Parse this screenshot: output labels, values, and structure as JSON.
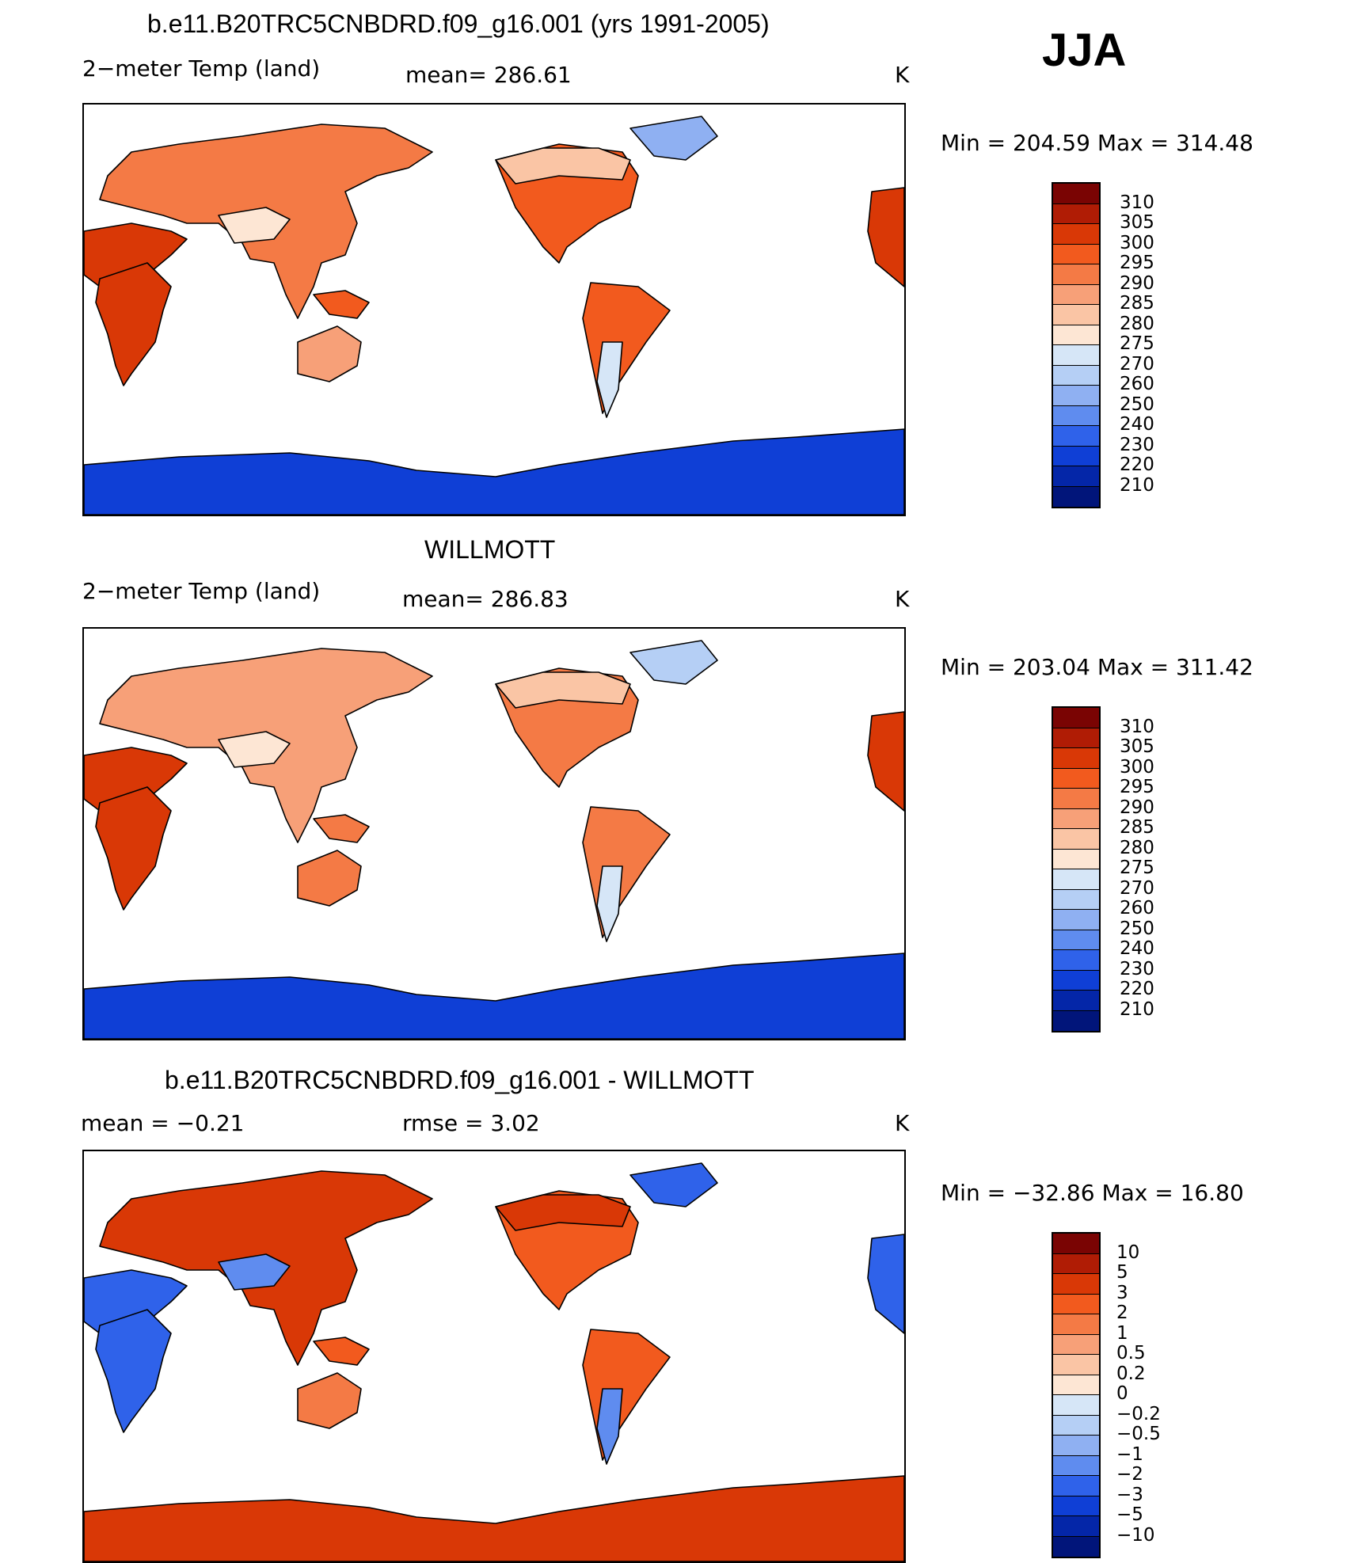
{
  "season": "JJA",
  "panels": [
    {
      "title": "b.e11.B20TRC5CNBDRD.f09_g16.001 (yrs 1991-2005)",
      "variable": "2−meter Temp (land)",
      "stat_text": "mean=  286.61",
      "units": "K",
      "minmax": "Min  =  204.59  Max  =  314.48",
      "colorbar": {
        "labels": [
          "310",
          "305",
          "300",
          "295",
          "290",
          "285",
          "280",
          "275",
          "270",
          "260",
          "250",
          "240",
          "230",
          "220",
          "210"
        ],
        "colors": [
          "#7a0403",
          "#b01c05",
          "#d93806",
          "#f25a1e",
          "#f47a45",
          "#f7a078",
          "#fac5a5",
          "#fde6d4",
          "#d6e6f7",
          "#b5cff5",
          "#8fb0f2",
          "#5f8cef",
          "#2f62ea",
          "#0f3fd6",
          "#0426a8",
          "#01157a"
        ]
      },
      "land_colors": {
        "eurasia": "#f47a45",
        "sahara": "#d93806",
        "asia_highland": "#fde6d4",
        "americas": "#f25a1e",
        "australia": "#f7a078",
        "greenland": "#8fb0f2",
        "antarctica": "#0f3fd6",
        "patagonia": "#d6e6f7",
        "canada": "#fac5a5"
      }
    },
    {
      "title": "WILLMOTT",
      "variable": "2−meter Temp (land)",
      "stat_text": "mean=  286.83",
      "units": "K",
      "minmax": "Min  =  203.04  Max  =  311.42",
      "colorbar": {
        "labels": [
          "310",
          "305",
          "300",
          "295",
          "290",
          "285",
          "280",
          "275",
          "270",
          "260",
          "250",
          "240",
          "230",
          "220",
          "210"
        ],
        "colors": [
          "#7a0403",
          "#b01c05",
          "#d93806",
          "#f25a1e",
          "#f47a45",
          "#f7a078",
          "#fac5a5",
          "#fde6d4",
          "#d6e6f7",
          "#b5cff5",
          "#8fb0f2",
          "#5f8cef",
          "#2f62ea",
          "#0f3fd6",
          "#0426a8",
          "#01157a"
        ]
      },
      "land_colors": {
        "eurasia": "#f7a078",
        "sahara": "#d93806",
        "asia_highland": "#fde6d4",
        "americas": "#f47a45",
        "australia": "#f47a45",
        "greenland": "#b5cff5",
        "antarctica": "#0f3fd6",
        "patagonia": "#d6e6f7",
        "canada": "#fac5a5"
      }
    },
    {
      "title": "b.e11.B20TRC5CNBDRD.f09_g16.001 - WILLMOTT",
      "stat_left": "mean  =    −0.21",
      "stat_mid": "rmse  =      3.02",
      "units": "K",
      "minmax": "Min  =  −32.86  Max  =    16.80",
      "colorbar": {
        "labels": [
          "10",
          "5",
          "3",
          "2",
          "1",
          "0.5",
          "0.2",
          "0",
          "−0.2",
          "−0.5",
          "−1",
          "−2",
          "−3",
          "−5",
          "−10"
        ],
        "colors": [
          "#7a0403",
          "#b01c05",
          "#d93806",
          "#f25a1e",
          "#f47a45",
          "#f7a078",
          "#fac5a5",
          "#fde6d4",
          "#d6e6f7",
          "#b5cff5",
          "#8fb0f2",
          "#5f8cef",
          "#2f62ea",
          "#0f3fd6",
          "#0426a8",
          "#01157a"
        ]
      },
      "land_colors": {
        "eurasia": "#d93806",
        "sahara": "#2f62ea",
        "asia_highland": "#5f8cef",
        "americas": "#f25a1e",
        "australia": "#f47a45",
        "greenland": "#2f62ea",
        "antarctica": "#d93806",
        "patagonia": "#5f8cef",
        "canada": "#d93806"
      }
    }
  ]
}
